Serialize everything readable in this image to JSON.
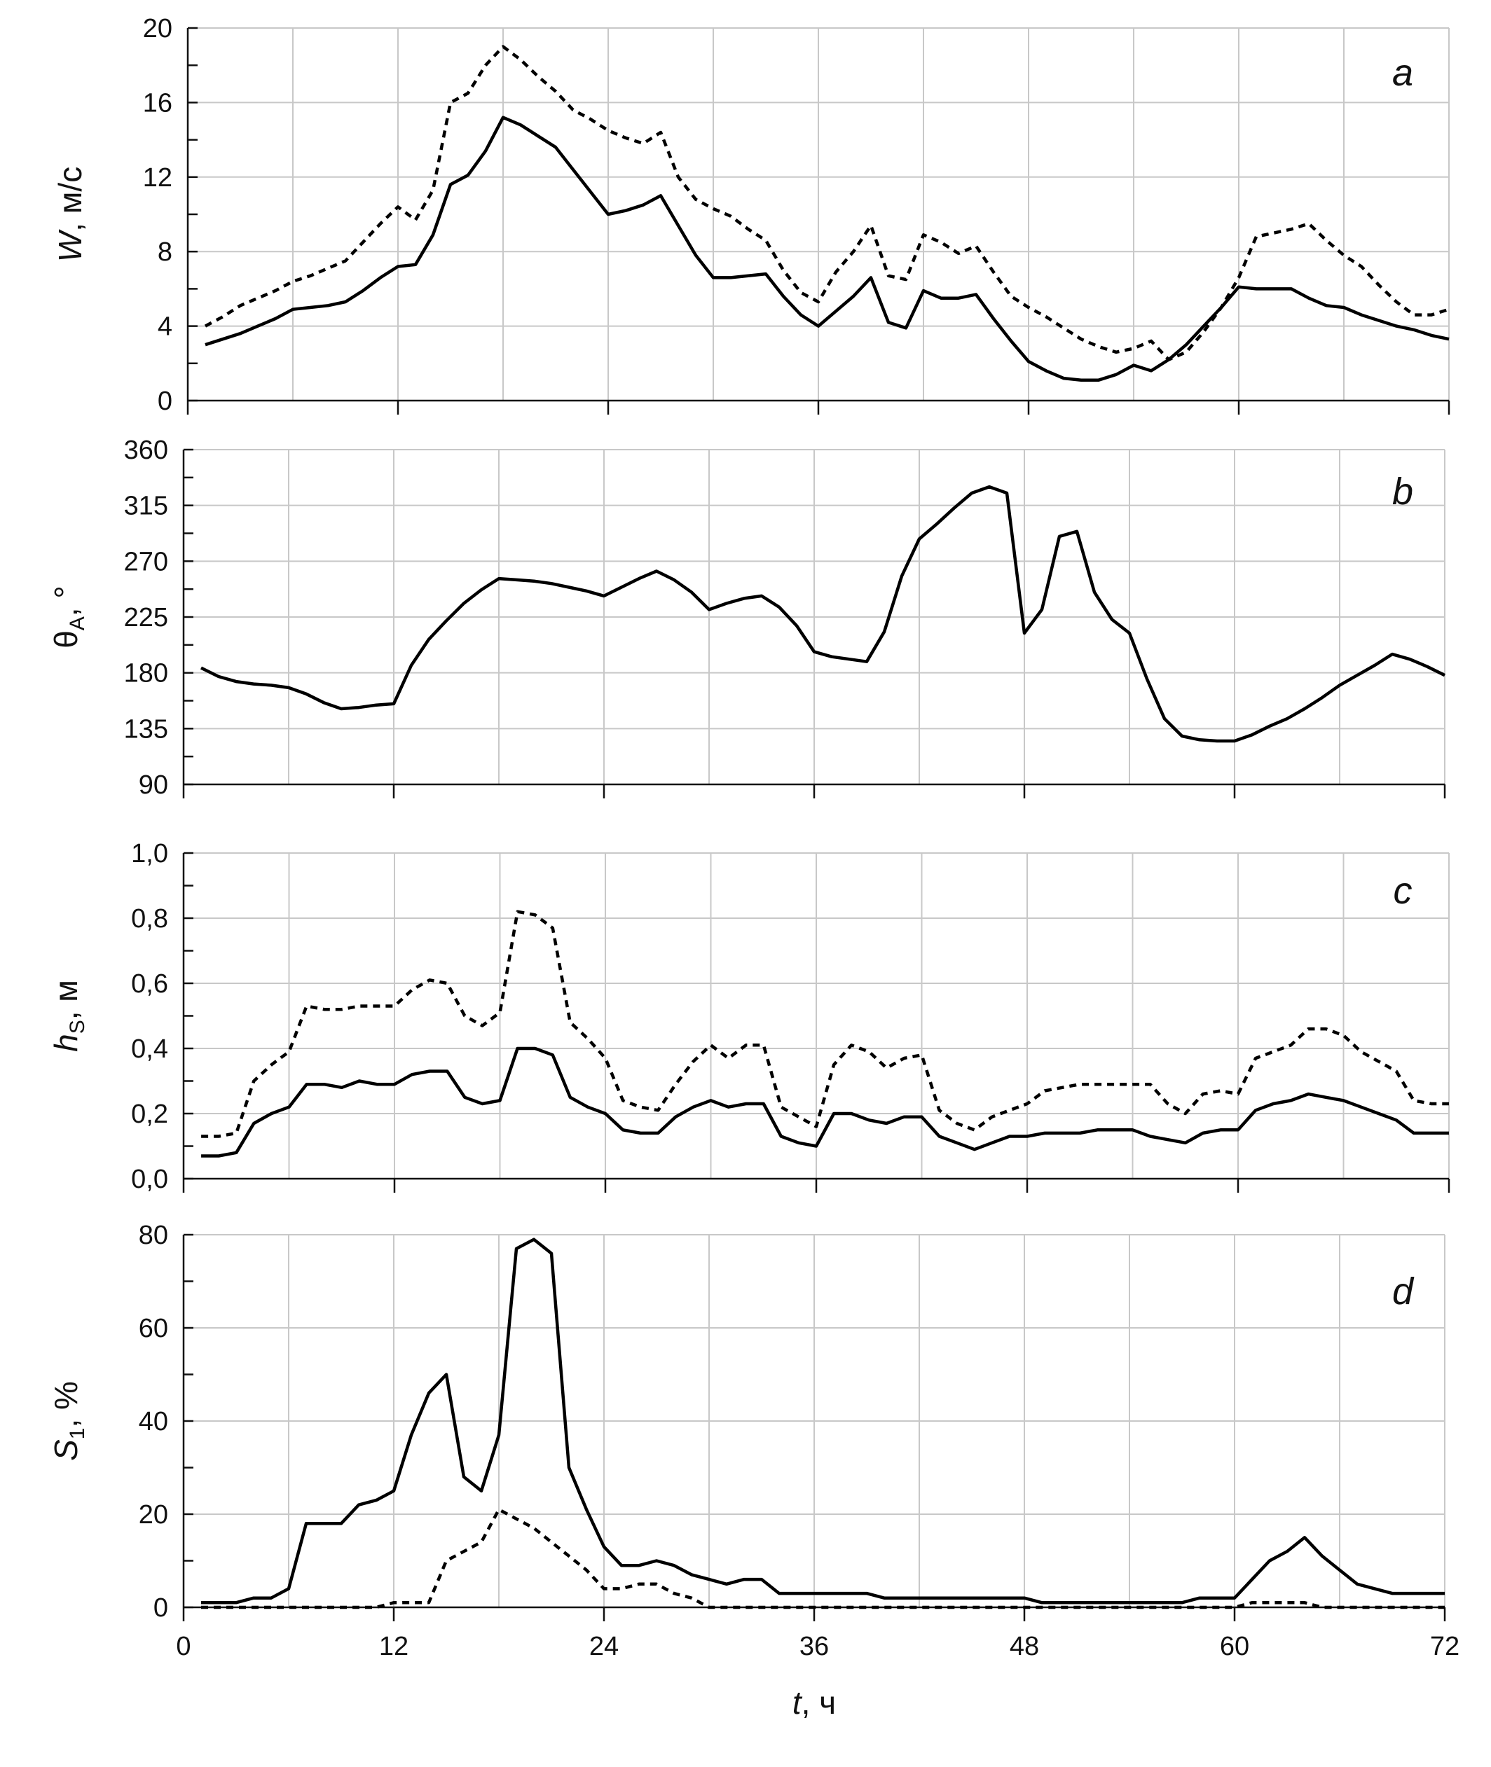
{
  "chart_data": [
    {
      "type": "line",
      "panel": "a",
      "ylabel": "W, м/с",
      "ylabel_main": "W",
      "ylabel_sub": "",
      "ylabel_rest": ", м/с",
      "ylim": [
        0,
        20
      ],
      "yticks": [
        "0",
        "4",
        "8",
        "12",
        "16",
        "20"
      ],
      "xlim": [
        0,
        72
      ],
      "series": [
        {
          "name": "solid",
          "style": "solid",
          "x": [
            1,
            2,
            3,
            4,
            5,
            6,
            7,
            8,
            9,
            10,
            11,
            12,
            13,
            14,
            15,
            16,
            17,
            18,
            19,
            20,
            21,
            22,
            23,
            24,
            25,
            26,
            27,
            28,
            29,
            30,
            31,
            32,
            33,
            34,
            35,
            36,
            37,
            38,
            39,
            40,
            41,
            42,
            43,
            44,
            45,
            46,
            47,
            48,
            49,
            50,
            51,
            52,
            53,
            54,
            55,
            56,
            57,
            58,
            59,
            60,
            61,
            62,
            63,
            64,
            65,
            66,
            67,
            68,
            69,
            70,
            71,
            72
          ],
          "values": [
            3.0,
            3.3,
            3.6,
            4.0,
            4.4,
            4.9,
            5.0,
            5.1,
            5.3,
            5.9,
            6.6,
            7.2,
            7.3,
            8.9,
            11.6,
            12.1,
            13.4,
            15.2,
            14.8,
            14.2,
            13.6,
            12.4,
            11.2,
            10.0,
            10.2,
            10.5,
            11.0,
            9.4,
            7.8,
            6.6,
            6.6,
            6.7,
            6.8,
            5.6,
            4.6,
            4.0,
            4.8,
            5.6,
            6.6,
            4.2,
            3.9,
            5.9,
            5.5,
            5.5,
            5.7,
            4.4,
            3.2,
            2.1,
            1.6,
            1.2,
            1.1,
            1.1,
            1.4,
            1.9,
            1.6,
            2.2,
            3.0,
            4.0,
            5.0,
            6.1,
            6.0,
            6.0,
            6.0,
            5.5,
            5.1,
            5.0,
            4.6,
            4.3,
            4.0,
            3.8,
            3.5,
            3.3
          ]
        },
        {
          "name": "dotted",
          "style": "dotted",
          "x": [
            1,
            2,
            3,
            4,
            5,
            6,
            7,
            8,
            9,
            10,
            11,
            12,
            13,
            14,
            15,
            16,
            17,
            18,
            19,
            20,
            21,
            22,
            23,
            24,
            25,
            26,
            27,
            28,
            29,
            30,
            31,
            32,
            33,
            34,
            35,
            36,
            37,
            38,
            39,
            40,
            41,
            42,
            43,
            44,
            45,
            46,
            47,
            48,
            49,
            50,
            51,
            52,
            53,
            54,
            55,
            56,
            57,
            58,
            59,
            60,
            61,
            62,
            63,
            64,
            65,
            66,
            67,
            68,
            69,
            70,
            71,
            72
          ],
          "values": [
            4.0,
            4.5,
            5.1,
            5.5,
            5.9,
            6.4,
            6.7,
            7.1,
            7.5,
            8.5,
            9.5,
            10.4,
            9.7,
            11.3,
            16.0,
            16.5,
            18.0,
            19.0,
            18.3,
            17.4,
            16.6,
            15.6,
            15.1,
            14.5,
            14.1,
            13.8,
            14.4,
            12.0,
            10.8,
            10.3,
            9.9,
            9.2,
            8.6,
            7.0,
            5.8,
            5.3,
            6.9,
            8.0,
            9.4,
            6.7,
            6.5,
            8.9,
            8.5,
            7.9,
            8.3,
            6.9,
            5.6,
            5.0,
            4.5,
            3.9,
            3.3,
            2.9,
            2.6,
            2.8,
            3.2,
            2.2,
            2.6,
            3.7,
            5.0,
            6.6,
            8.8,
            9.0,
            9.2,
            9.5,
            8.6,
            7.8,
            7.2,
            6.2,
            5.3,
            4.6,
            4.6,
            4.9
          ]
        }
      ]
    },
    {
      "type": "line",
      "panel": "b",
      "ylabel": "θA, °",
      "ylabel_main": "θ",
      "ylabel_sub": "A",
      "ylabel_rest": ", °",
      "ylim": [
        90,
        360
      ],
      "yticks": [
        "90",
        "135",
        "180",
        "225",
        "270",
        "315",
        "360"
      ],
      "xlim": [
        0,
        72
      ],
      "series": [
        {
          "name": "solid",
          "style": "solid",
          "x": [
            1,
            2,
            3,
            4,
            5,
            6,
            7,
            8,
            9,
            10,
            11,
            12,
            13,
            14,
            15,
            16,
            17,
            18,
            19,
            20,
            21,
            22,
            23,
            24,
            25,
            26,
            27,
            28,
            29,
            30,
            31,
            32,
            33,
            34,
            35,
            36,
            37,
            38,
            39,
            40,
            41,
            42,
            43,
            44,
            45,
            46,
            47,
            48,
            49,
            50,
            51,
            52,
            53,
            54,
            55,
            56,
            57,
            58,
            59,
            60,
            61,
            62,
            63,
            64,
            65,
            66,
            67,
            68,
            69,
            70,
            71,
            72
          ],
          "values": [
            184,
            177,
            173,
            171,
            170,
            168,
            163,
            156,
            151,
            152,
            154,
            155,
            186,
            207,
            222,
            236,
            247,
            256,
            255,
            254,
            252,
            249,
            246,
            242,
            249,
            256,
            262,
            255,
            245,
            231,
            236,
            240,
            242,
            233,
            218,
            197,
            193,
            191,
            189,
            213,
            258,
            288,
            300,
            313,
            325,
            330,
            325,
            212,
            231,
            290,
            294,
            245,
            223,
            212,
            175,
            143,
            129,
            126,
            125,
            125,
            130,
            137,
            143,
            151,
            160,
            170,
            178,
            186,
            195,
            191,
            185,
            178
          ]
        }
      ]
    },
    {
      "type": "line",
      "panel": "c",
      "ylabel": "hS, м",
      "ylabel_main": "h",
      "ylabel_sub": "S",
      "ylabel_rest": ", м",
      "ylim": [
        0,
        1
      ],
      "yticks": [
        "0,0",
        "0,2",
        "0,4",
        "0,6",
        "0,8",
        "1,0"
      ],
      "xlim": [
        0,
        72
      ],
      "series": [
        {
          "name": "solid",
          "style": "solid",
          "x": [
            1,
            2,
            3,
            4,
            5,
            6,
            7,
            8,
            9,
            10,
            11,
            12,
            13,
            14,
            15,
            16,
            17,
            18,
            19,
            20,
            21,
            22,
            23,
            24,
            25,
            26,
            27,
            28,
            29,
            30,
            31,
            32,
            33,
            34,
            35,
            36,
            37,
            38,
            39,
            40,
            41,
            42,
            43,
            44,
            45,
            46,
            47,
            48,
            49,
            50,
            51,
            52,
            53,
            54,
            55,
            56,
            57,
            58,
            59,
            60,
            61,
            62,
            63,
            64,
            65,
            66,
            67,
            68,
            69,
            70,
            71,
            72
          ],
          "values": [
            0.07,
            0.07,
            0.08,
            0.17,
            0.2,
            0.22,
            0.29,
            0.29,
            0.28,
            0.3,
            0.29,
            0.29,
            0.32,
            0.33,
            0.33,
            0.25,
            0.23,
            0.24,
            0.4,
            0.4,
            0.38,
            0.25,
            0.22,
            0.2,
            0.15,
            0.14,
            0.14,
            0.19,
            0.22,
            0.24,
            0.22,
            0.23,
            0.23,
            0.13,
            0.11,
            0.1,
            0.2,
            0.2,
            0.18,
            0.17,
            0.19,
            0.19,
            0.13,
            0.11,
            0.09,
            0.11,
            0.13,
            0.13,
            0.14,
            0.14,
            0.14,
            0.15,
            0.15,
            0.15,
            0.13,
            0.12,
            0.11,
            0.14,
            0.15,
            0.15,
            0.21,
            0.23,
            0.24,
            0.26,
            0.25,
            0.24,
            0.22,
            0.2,
            0.18,
            0.14,
            0.14,
            0.14
          ]
        },
        {
          "name": "dotted",
          "style": "dotted",
          "x": [
            1,
            2,
            3,
            4,
            5,
            6,
            7,
            8,
            9,
            10,
            11,
            12,
            13,
            14,
            15,
            16,
            17,
            18,
            19,
            20,
            21,
            22,
            23,
            24,
            25,
            26,
            27,
            28,
            29,
            30,
            31,
            32,
            33,
            34,
            35,
            36,
            37,
            38,
            39,
            40,
            41,
            42,
            43,
            44,
            45,
            46,
            47,
            48,
            49,
            50,
            51,
            52,
            53,
            54,
            55,
            56,
            57,
            58,
            59,
            60,
            61,
            62,
            63,
            64,
            65,
            66,
            67,
            68,
            69,
            70,
            71,
            72
          ],
          "values": [
            0.13,
            0.13,
            0.14,
            0.3,
            0.35,
            0.39,
            0.53,
            0.52,
            0.52,
            0.53,
            0.53,
            0.53,
            0.58,
            0.61,
            0.6,
            0.5,
            0.47,
            0.51,
            0.82,
            0.81,
            0.77,
            0.48,
            0.43,
            0.37,
            0.24,
            0.22,
            0.21,
            0.29,
            0.36,
            0.41,
            0.37,
            0.41,
            0.41,
            0.22,
            0.19,
            0.16,
            0.35,
            0.41,
            0.39,
            0.34,
            0.37,
            0.38,
            0.21,
            0.17,
            0.15,
            0.19,
            0.21,
            0.23,
            0.27,
            0.28,
            0.29,
            0.29,
            0.29,
            0.29,
            0.29,
            0.23,
            0.2,
            0.26,
            0.27,
            0.26,
            0.37,
            0.39,
            0.41,
            0.46,
            0.46,
            0.44,
            0.39,
            0.36,
            0.33,
            0.24,
            0.23,
            0.23
          ]
        }
      ]
    },
    {
      "type": "line",
      "panel": "d",
      "ylabel": "S1, %",
      "ylabel_main": "S",
      "ylabel_sub": "1",
      "ylabel_rest": ", %",
      "ylim": [
        0,
        80
      ],
      "yticks": [
        "0",
        "20",
        "40",
        "60",
        "80"
      ],
      "xlim": [
        0,
        72
      ],
      "xticks": [
        "0",
        "12",
        "24",
        "36",
        "48",
        "60",
        "72"
      ],
      "xlabel_main": "t",
      "xlabel_rest": ", ч",
      "series": [
        {
          "name": "solid",
          "style": "solid",
          "x": [
            1,
            2,
            3,
            4,
            5,
            6,
            7,
            8,
            9,
            10,
            11,
            12,
            13,
            14,
            15,
            16,
            17,
            18,
            19,
            20,
            21,
            22,
            23,
            24,
            25,
            26,
            27,
            28,
            29,
            30,
            31,
            32,
            33,
            34,
            35,
            36,
            37,
            38,
            39,
            40,
            41,
            42,
            43,
            44,
            45,
            46,
            47,
            48,
            49,
            50,
            51,
            52,
            53,
            54,
            55,
            56,
            57,
            58,
            59,
            60,
            61,
            62,
            63,
            64,
            65,
            66,
            67,
            68,
            69,
            70,
            71,
            72
          ],
          "values": [
            1,
            1,
            1,
            2,
            2,
            4,
            18,
            18,
            18,
            22,
            23,
            25,
            37,
            46,
            50,
            28,
            25,
            37,
            77,
            79,
            76,
            30,
            21,
            13,
            9,
            9,
            10,
            9,
            7,
            6,
            5,
            6,
            6,
            3,
            3,
            3,
            3,
            3,
            3,
            2,
            2,
            2,
            2,
            2,
            2,
            2,
            2,
            2,
            1,
            1,
            1,
            1,
            1,
            1,
            1,
            1,
            1,
            2,
            2,
            2,
            6,
            10,
            12,
            15,
            11,
            8,
            5,
            4,
            3,
            3,
            3,
            3
          ]
        },
        {
          "name": "dotted",
          "style": "dotted",
          "x": [
            1,
            2,
            3,
            4,
            5,
            6,
            7,
            8,
            9,
            10,
            11,
            12,
            13,
            14,
            15,
            16,
            17,
            18,
            19,
            20,
            21,
            22,
            23,
            24,
            25,
            26,
            27,
            28,
            29,
            30,
            31,
            32,
            33,
            34,
            35,
            36,
            37,
            38,
            39,
            40,
            41,
            42,
            43,
            44,
            45,
            46,
            47,
            48,
            49,
            50,
            51,
            52,
            53,
            54,
            55,
            56,
            57,
            58,
            59,
            60,
            61,
            62,
            63,
            64,
            65,
            66,
            67,
            68,
            69,
            70,
            71,
            72
          ],
          "values": [
            0,
            0,
            0,
            0,
            0,
            0,
            0,
            0,
            0,
            0,
            0,
            1,
            1,
            1,
            10,
            12,
            14,
            21,
            19,
            17,
            14,
            11,
            8,
            4,
            4,
            5,
            5,
            3,
            2,
            0,
            0,
            0,
            0,
            0,
            0,
            0,
            0,
            0,
            0,
            0,
            0,
            0,
            0,
            0,
            0,
            0,
            0,
            0,
            0,
            0,
            0,
            0,
            0,
            0,
            0,
            0,
            0,
            0,
            0,
            0,
            1,
            1,
            1,
            1,
            0,
            0,
            0,
            0,
            0,
            0,
            0,
            0
          ]
        }
      ]
    }
  ]
}
